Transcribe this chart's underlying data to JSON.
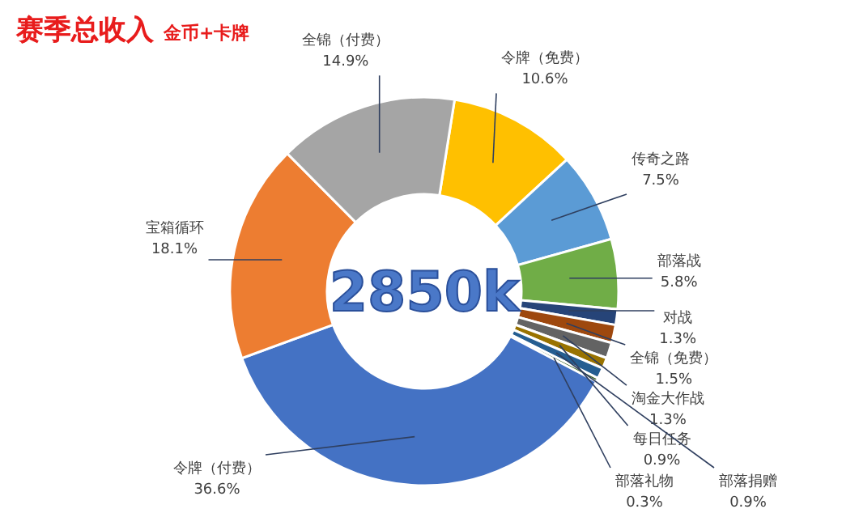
{
  "chart_data": {
    "type": "donut",
    "title": "赛季总收入",
    "subtitle": "金币+卡牌",
    "categories": [
      "令牌（免费）",
      "传奇之路",
      "部落战",
      "对战",
      "全锦（免费）",
      "淘金大作战",
      "每日任务",
      "部落捐赠",
      "部落礼物",
      "令牌（付费）",
      "宝箱循环",
      "全锦（付费）"
    ],
    "values": [
      10.6,
      7.5,
      5.8,
      1.3,
      1.5,
      1.3,
      0.9,
      0.9,
      0.3,
      36.6,
      18.1,
      14.9
    ],
    "colors": [
      "#ffc000",
      "#5b9bd5",
      "#70ad47",
      "#264478",
      "#9e480e",
      "#636363",
      "#997300",
      "#255e91",
      "#43682b",
      "#4472c4",
      "#ed7d31",
      "#a5a5a5"
    ],
    "value_labels": [
      "10.6%",
      "7.5%",
      "5.8%",
      "1.3%",
      "1.5%",
      "1.3%",
      "0.9%",
      "0.9%",
      "0.3%",
      "36.6%",
      "18.1%",
      "14.9%"
    ],
    "legend": false,
    "annotations": [
      "2850k"
    ]
  }
}
